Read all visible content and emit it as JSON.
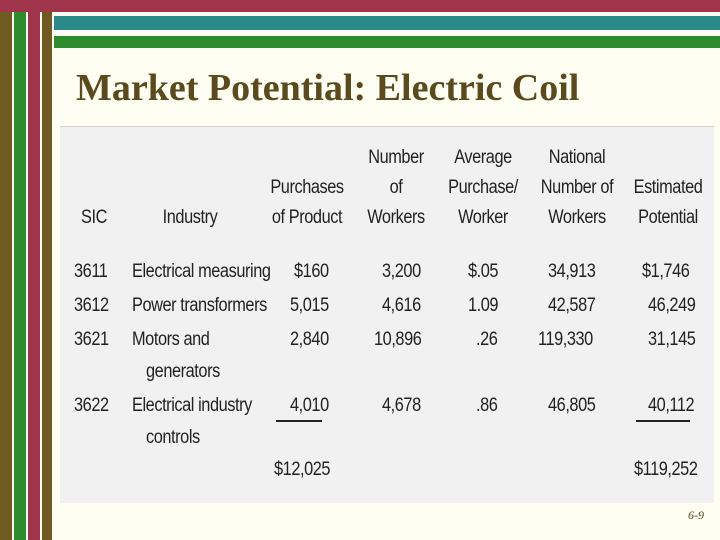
{
  "slide": {
    "title": "Market Potential: Electric Coil",
    "page_number": "6-9"
  },
  "table": {
    "headers": [
      {
        "lines": [
          "SIC"
        ]
      },
      {
        "lines": [
          "Industry"
        ]
      },
      {
        "lines": [
          "Purchases",
          "of Product"
        ]
      },
      {
        "lines": [
          "Number",
          "of",
          "Workers"
        ]
      },
      {
        "lines": [
          "Average",
          "Purchase/",
          "Worker"
        ]
      },
      {
        "lines": [
          "National",
          "Number of",
          "Workers"
        ]
      },
      {
        "lines": [
          "Estimated",
          "Potential"
        ]
      }
    ],
    "rows": [
      {
        "sic": "3611",
        "industry": [
          "Electrical measuring"
        ],
        "purchases": "$160",
        "workers": "3,200",
        "avg": "$.05",
        "national": "34,913",
        "potential": "$1,746"
      },
      {
        "sic": "3612",
        "industry": [
          "Power transformers"
        ],
        "purchases": "5,015",
        "workers": "4,616",
        "avg": "1.09",
        "national": "42,587",
        "potential": "46,249"
      },
      {
        "sic": "3621",
        "industry": [
          "Motors and",
          "generators"
        ],
        "purchases": "2,840",
        "workers": "10,896",
        "avg": ".26",
        "national": "119,330",
        "potential": "31,145"
      },
      {
        "sic": "3622",
        "industry": [
          "Electrical industry",
          "controls"
        ],
        "purchases": "4,010",
        "workers": "4,678",
        "avg": ".86",
        "national": "46,805",
        "potential": "40,112"
      }
    ],
    "totals": {
      "purchases": "$12,025",
      "potential": "$119,252"
    }
  }
}
